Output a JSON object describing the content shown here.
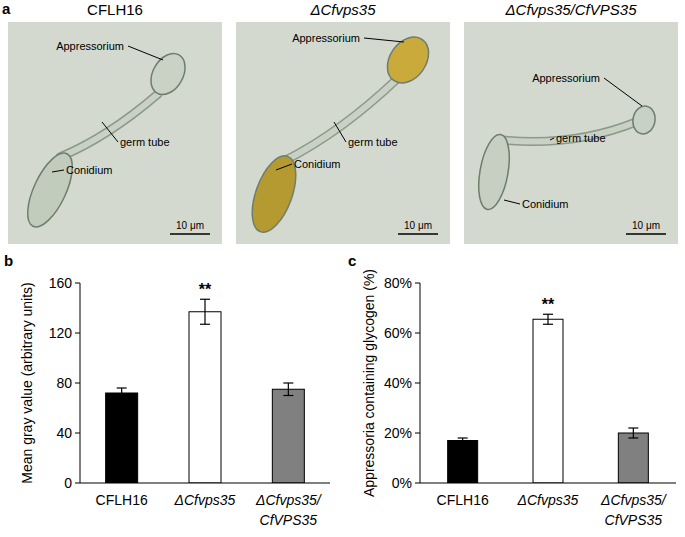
{
  "panel_a": {
    "panel_label": "a",
    "images": [
      {
        "title": "CFLH16",
        "appressorium": "Appressorium",
        "germ_tube": "germ tube",
        "conidium": "Conidium",
        "scale_bar": "10 μm"
      },
      {
        "title": "ΔCfvps35",
        "appressorium": "Appressorium",
        "germ_tube": "germ tube",
        "conidium": "Conidium",
        "scale_bar": "10 μm"
      },
      {
        "title": "ΔCfvps35/CfVPS35",
        "appressorium": "Appressorium",
        "germ_tube": "germ tube",
        "conidium": "Conidium",
        "scale_bar": "10 μm"
      }
    ]
  },
  "chart_data": [
    {
      "type": "bar",
      "panel_label": "b",
      "y_label": "Mean gray value (arbitrary units)",
      "categories": [
        "CFLH16",
        "ΔCfvps35",
        "ΔCfvps35/CfVPS35"
      ],
      "values": [
        72,
        137,
        75
      ],
      "errors": [
        4,
        10,
        5
      ],
      "colors": [
        "#000000",
        "#ffffff",
        "#808080"
      ],
      "ylim": [
        0,
        160
      ],
      "yticks": [
        0,
        40,
        80,
        120,
        160
      ],
      "annotations": [
        {
          "index": 1,
          "text": "**"
        }
      ]
    },
    {
      "type": "bar",
      "panel_label": "c",
      "y_label": "Appressoria containing glycogen (%)",
      "categories": [
        "CFLH16",
        "ΔCfvps35",
        "ΔCfvps35/CfVPS35"
      ],
      "values": [
        17,
        65.5,
        20
      ],
      "errors": [
        1,
        2,
        2
      ],
      "colors": [
        "#000000",
        "#ffffff",
        "#808080"
      ],
      "ylim": [
        0,
        80
      ],
      "yticks": [
        {
          "value": 0,
          "label": "0%"
        },
        {
          "value": 20,
          "label": "20%"
        },
        {
          "value": 40,
          "label": "40%"
        },
        {
          "value": 60,
          "label": "60%"
        },
        {
          "value": 80,
          "label": "80%"
        }
      ],
      "annotations": [
        {
          "index": 1,
          "text": "**"
        }
      ]
    }
  ]
}
